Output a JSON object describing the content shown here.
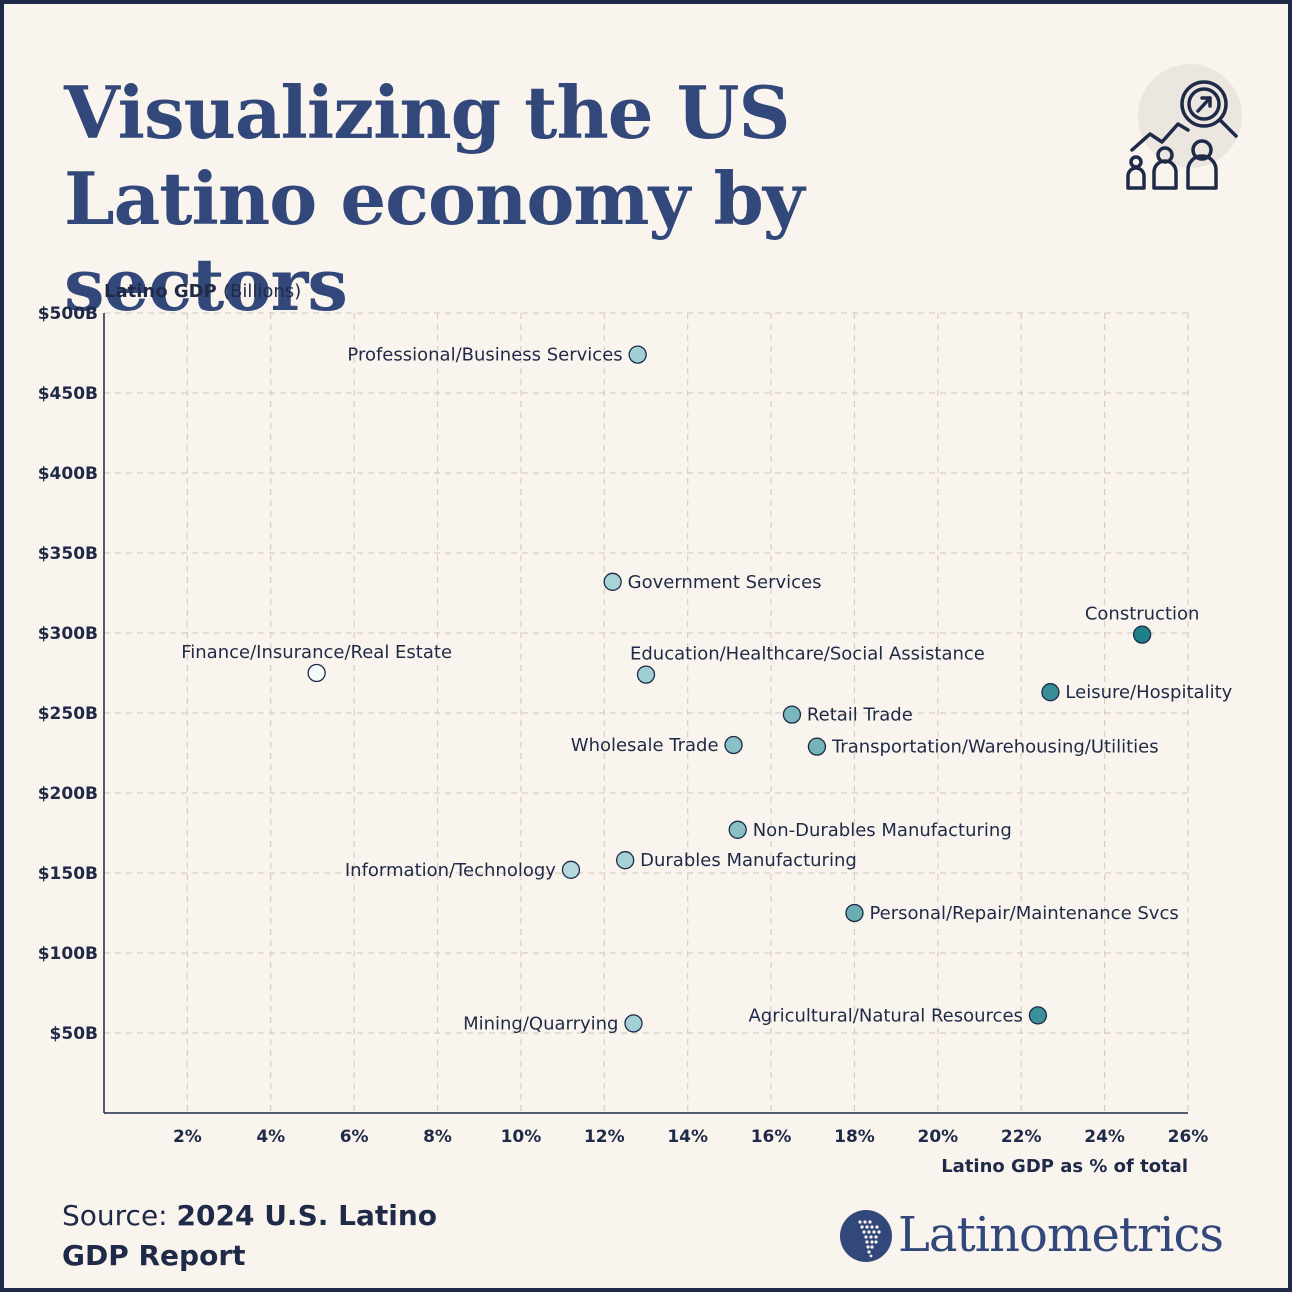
{
  "title": "Visualizing the US Latino economy by sectors",
  "icon_name": "growth-analysis-people-icon",
  "source": {
    "lead": "Source: ",
    "text_a": "2024 U.S. Latino",
    "text_b": "GDP Report"
  },
  "brand": {
    "name": "Latinometrics",
    "mark": "latin-america-map-icon"
  },
  "colors": {
    "background": "#faf4ee",
    "title": "#33487a",
    "text": "#1e2a47",
    "grid": "#d9cdc4",
    "dot_light": "#f7fbfb",
    "dot_mid": "#9fcfd3",
    "dot_dark": "#1f7f87"
  },
  "chart_data": {
    "type": "scatter",
    "title": "",
    "ylabel_bold": "Latino GDP",
    "ylabel_rest": "(Billions)",
    "xlabel": "Latino GDP as % of total",
    "xlim": [
      0,
      26
    ],
    "ylim": [
      0,
      500
    ],
    "xticks": [
      2,
      4,
      6,
      8,
      10,
      12,
      14,
      16,
      18,
      20,
      22,
      24,
      26
    ],
    "xtick_labels": [
      "2%",
      "4%",
      "6%",
      "8%",
      "10%",
      "12%",
      "14%",
      "16%",
      "18%",
      "20%",
      "22%",
      "24%",
      "26%"
    ],
    "yticks": [
      50,
      100,
      150,
      200,
      250,
      300,
      350,
      400,
      450,
      500
    ],
    "ytick_labels": [
      "$50B",
      "$100B",
      "$150B",
      "$200B",
      "$250B",
      "$300B",
      "$350B",
      "$400B",
      "$450B",
      "$500B"
    ],
    "grid": true,
    "points": [
      {
        "label": "Professional/Business Services",
        "x": 12.8,
        "y": 474,
        "label_side": "left"
      },
      {
        "label": "Government Services",
        "x": 12.2,
        "y": 332,
        "label_side": "right"
      },
      {
        "label": "Construction",
        "x": 24.9,
        "y": 299,
        "label_side": "above"
      },
      {
        "label": "Finance/Insurance/Real Estate",
        "x": 5.1,
        "y": 275,
        "label_side": "above"
      },
      {
        "label": "Education/Healthcare/Social Assistance",
        "x": 13.0,
        "y": 274,
        "label_side": "above-right"
      },
      {
        "label": "Leisure/Hospitality",
        "x": 22.7,
        "y": 263,
        "label_side": "right"
      },
      {
        "label": "Retail Trade",
        "x": 16.5,
        "y": 249,
        "label_side": "right"
      },
      {
        "label": "Wholesale Trade",
        "x": 15.1,
        "y": 230,
        "label_side": "left"
      },
      {
        "label": "Transportation/Warehousing/Utilities",
        "x": 17.1,
        "y": 229,
        "label_side": "right"
      },
      {
        "label": "Non-Durables Manufacturing",
        "x": 15.2,
        "y": 177,
        "label_side": "right"
      },
      {
        "label": "Durables Manufacturing",
        "x": 12.5,
        "y": 158,
        "label_side": "right"
      },
      {
        "label": "Information/Technology",
        "x": 11.2,
        "y": 152,
        "label_side": "left"
      },
      {
        "label": "Personal/Repair/Maintenance Svcs",
        "x": 18.0,
        "y": 125,
        "label_side": "right"
      },
      {
        "label": "Agricultural/Natural Resources",
        "x": 22.4,
        "y": 61,
        "label_side": "left"
      },
      {
        "label": "Mining/Quarrying",
        "x": 12.7,
        "y": 56,
        "label_side": "left"
      }
    ]
  }
}
